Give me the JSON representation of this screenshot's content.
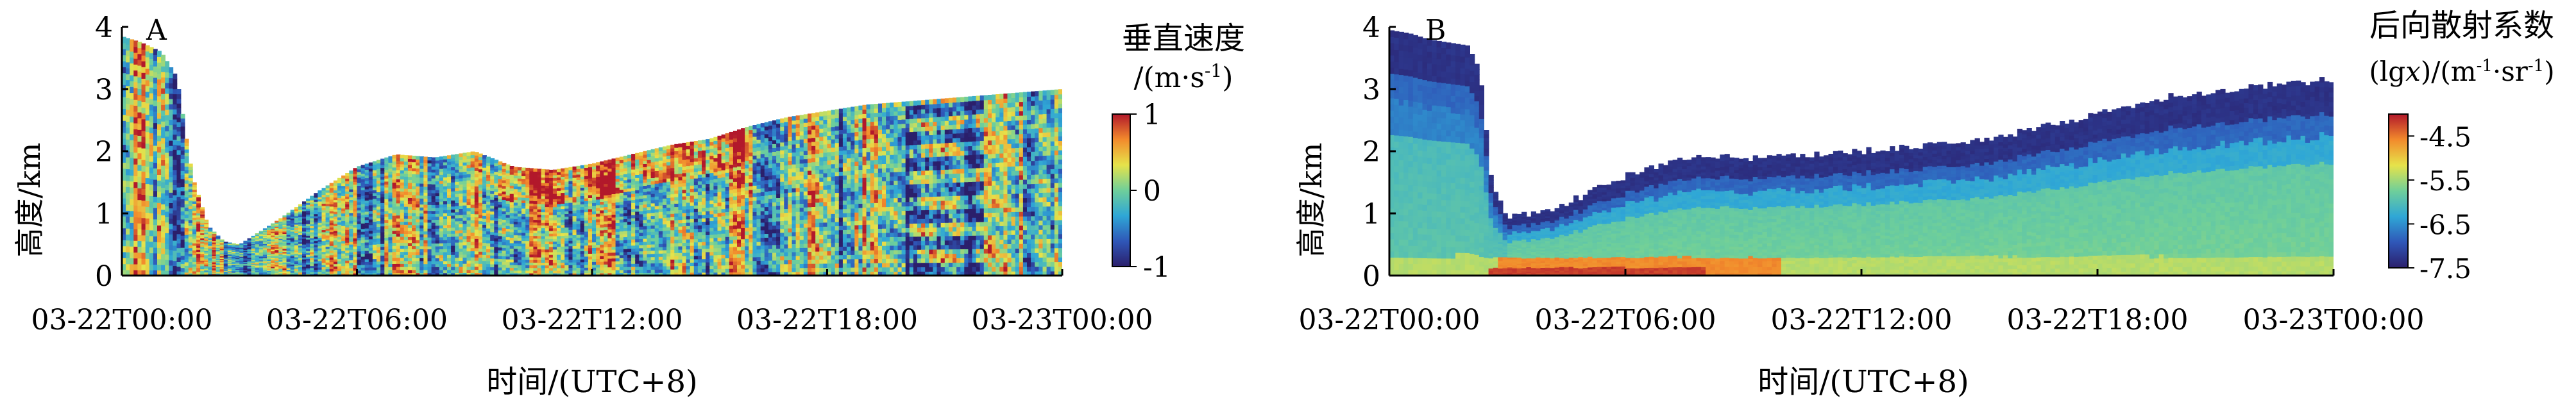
{
  "figure": {
    "xlabel": "时间/(UTC+8)"
  },
  "chart_data": [
    {
      "type": "heatmap",
      "panel_label": "A",
      "ylabel": "高度/km",
      "xlabel": "时间/(UTC+8)",
      "x_ticks": [
        "03-22T00:00",
        "03-22T06:00",
        "03-22T12:00",
        "03-22T18:00",
        "03-23T00:00"
      ],
      "x_tick_hours": [
        0,
        6,
        12,
        18,
        24
      ],
      "xlim_hours": [
        0,
        24
      ],
      "ylim": [
        0,
        4
      ],
      "y_ticks": [
        "0",
        "1",
        "2",
        "3",
        "4"
      ],
      "y_tick_values": [
        0,
        1,
        2,
        3,
        4
      ],
      "colorbar": {
        "title_line1": "垂直速度",
        "title_line2": "/(m·s",
        "title_sup": "-1",
        "title_line2_end": ")",
        "range": [
          -1,
          1
        ],
        "ticks": [
          "1",
          "0",
          "-1"
        ],
        "tick_values": [
          1,
          0,
          -1
        ],
        "colormap": [
          "#2b1f6b",
          "#2f57b8",
          "#2fa7d6",
          "#6fcf9a",
          "#e6e34a",
          "#f28a2c",
          "#b2182b"
        ]
      },
      "top_boundary": {
        "hour": [
          0,
          0.5,
          1.0,
          1.4,
          1.8,
          2.2,
          2.6,
          3.0,
          4.0,
          5.0,
          6.0,
          7.0,
          8.0,
          9.0,
          10.0,
          11.0,
          12.0,
          13.0,
          14.0,
          15.0,
          16.0,
          17.0,
          18.0,
          19.0,
          20.0,
          21.0,
          22.0,
          23.0,
          24.0
        ],
        "km": [
          3.85,
          3.75,
          3.6,
          3.2,
          1.6,
          0.8,
          0.55,
          0.5,
          0.9,
          1.35,
          1.75,
          1.95,
          1.9,
          2.0,
          1.75,
          1.7,
          1.8,
          1.95,
          2.1,
          2.2,
          2.4,
          2.55,
          2.65,
          2.75,
          2.8,
          2.85,
          2.9,
          2.95,
          3.0
        ]
      }
    },
    {
      "type": "heatmap",
      "panel_label": "B",
      "ylabel": "高度/km",
      "xlabel": "时间/(UTC+8)",
      "x_ticks": [
        "03-22T00:00",
        "03-22T06:00",
        "03-22T12:00",
        "03-22T18:00",
        "03-23T00:00"
      ],
      "x_tick_hours": [
        0,
        6,
        12,
        18,
        24
      ],
      "xlim_hours": [
        0,
        24
      ],
      "ylim": [
        0,
        4
      ],
      "y_ticks": [
        "0",
        "1",
        "2",
        "3",
        "4"
      ],
      "y_tick_values": [
        0,
        1,
        2,
        3,
        4
      ],
      "colorbar": {
        "title_line1": "后向散射系数",
        "title_line2": "(lg",
        "title_italic": "x",
        "title_line2_mid": ")/(m",
        "title_sup1": "-1",
        "title_line2_mid2": "·sr",
        "title_sup2": "-1",
        "title_line2_end": ")",
        "range": [
          -7.5,
          -4.0
        ],
        "ticks": [
          "-4.5",
          "-5.5",
          "-6.5",
          "-7.5"
        ],
        "tick_values": [
          -4.5,
          -5.5,
          -6.5,
          -7.5
        ],
        "colormap": [
          "#2b1f6b",
          "#2f57b8",
          "#2fa7d6",
          "#6fcf9a",
          "#e6e34a",
          "#f28a2c",
          "#b2182b"
        ]
      },
      "top_boundary": {
        "hour": [
          0,
          0.5,
          1.0,
          1.5,
          2.0,
          2.3,
          2.6,
          3.0,
          4.0,
          5.0,
          6.0,
          7.0,
          8.0,
          10.0,
          12.0,
          14.0,
          16.0,
          18.0,
          20.0,
          22.0,
          23.0,
          24.0
        ],
        "km": [
          3.95,
          3.9,
          3.8,
          3.75,
          3.7,
          3.3,
          1.5,
          0.95,
          1.05,
          1.3,
          1.6,
          1.8,
          1.9,
          1.9,
          2.0,
          2.1,
          2.3,
          2.6,
          2.9,
          3.05,
          3.1,
          3.15
        ]
      }
    }
  ]
}
